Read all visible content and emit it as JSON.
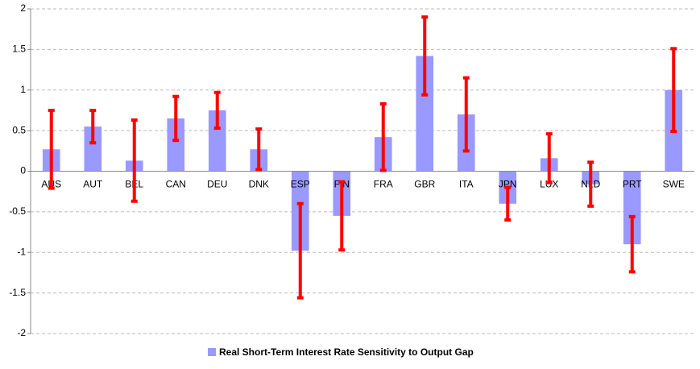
{
  "chart_data": {
    "type": "bar",
    "categories": [
      "AUS",
      "AUT",
      "BEL",
      "CAN",
      "DEU",
      "DNK",
      "ESP",
      "FIN",
      "FRA",
      "GBR",
      "ITA",
      "JPN",
      "LUX",
      "NLD",
      "PRT",
      "SWE"
    ],
    "series": [
      {
        "name": "Real Short-Term Interest Rate Sensitivity to Output Gap",
        "color": "#9999ff",
        "values": [
          0.27,
          0.55,
          0.13,
          0.65,
          0.75,
          0.27,
          -0.98,
          -0.55,
          0.42,
          1.42,
          0.7,
          -0.4,
          0.16,
          -0.16,
          -0.9,
          1.0
        ],
        "errors": [
          0.48,
          0.2,
          0.5,
          0.27,
          0.22,
          0.25,
          0.58,
          0.42,
          0.41,
          0.48,
          0.45,
          0.2,
          0.3,
          0.27,
          0.34,
          0.51
        ],
        "error_color": "#ff0000"
      }
    ],
    "ylim": [
      -2,
      2
    ],
    "yticks": [
      -2,
      -1.5,
      -1,
      -0.5,
      0,
      0.5,
      1,
      1.5,
      2
    ],
    "grid": true,
    "legend": "bottom"
  }
}
